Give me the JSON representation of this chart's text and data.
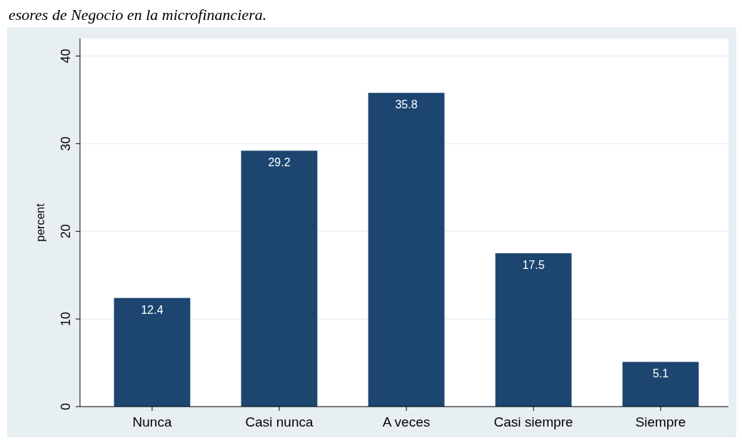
{
  "chart_data": {
    "type": "bar",
    "title": "esores de Negocio en la microfinanciera.",
    "categories": [
      "Nunca",
      "Casi nunca",
      "A veces",
      "Casi siempre",
      "Siempre"
    ],
    "values": [
      12.4,
      29.2,
      35.8,
      17.5,
      5.1
    ],
    "color": "#1c4670",
    "ylim": [
      0,
      42
    ],
    "yticks": [
      0,
      10,
      20,
      30,
      40
    ],
    "ylabel": "percent",
    "grid": "y",
    "data_labels": true
  }
}
